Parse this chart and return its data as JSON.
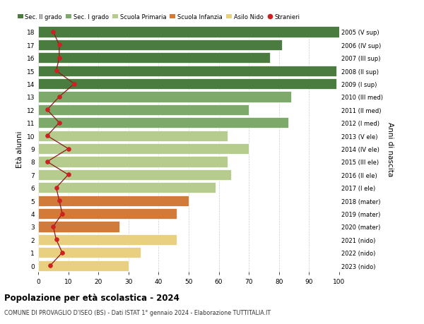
{
  "ages": [
    18,
    17,
    16,
    15,
    14,
    13,
    12,
    11,
    10,
    9,
    8,
    7,
    6,
    5,
    4,
    3,
    2,
    1,
    0
  ],
  "anni_nascita": [
    "2005 (V sup)",
    "2006 (IV sup)",
    "2007 (III sup)",
    "2008 (II sup)",
    "2009 (I sup)",
    "2010 (III med)",
    "2011 (II med)",
    "2012 (I med)",
    "2013 (V ele)",
    "2014 (IV ele)",
    "2015 (III ele)",
    "2016 (II ele)",
    "2017 (I ele)",
    "2018 (mater)",
    "2019 (mater)",
    "2020 (mater)",
    "2021 (nido)",
    "2022 (nido)",
    "2023 (nido)"
  ],
  "bar_values": [
    100,
    81,
    77,
    99,
    99,
    84,
    70,
    83,
    63,
    70,
    63,
    64,
    59,
    50,
    46,
    27,
    46,
    34,
    30
  ],
  "bar_colors": [
    "#4a7c3f",
    "#4a7c3f",
    "#4a7c3f",
    "#4a7c3f",
    "#4a7c3f",
    "#7daa6b",
    "#7daa6b",
    "#7daa6b",
    "#b5cc8e",
    "#b5cc8e",
    "#b5cc8e",
    "#b5cc8e",
    "#b5cc8e",
    "#d17a3a",
    "#d17a3a",
    "#d17a3a",
    "#e8d080",
    "#e8d080",
    "#e8d080"
  ],
  "stranieri": [
    5,
    7,
    7,
    6,
    12,
    7,
    3,
    7,
    3,
    10,
    3,
    10,
    6,
    7,
    8,
    5,
    6,
    8,
    4
  ],
  "legend_labels": [
    "Sec. II grado",
    "Sec. I grado",
    "Scuola Primaria",
    "Scuola Infanzia",
    "Asilo Nido",
    "Stranieri"
  ],
  "legend_colors": [
    "#4a7c3f",
    "#7daa6b",
    "#b5cc8e",
    "#d17a3a",
    "#e8d080",
    "#cc2222"
  ],
  "ylabel": "Età alunni",
  "ylabel2": "Anni di nascita",
  "title": "Popolazione per età scolastica - 2024",
  "subtitle": "COMUNE DI PROVAGLIO D'ISEO (BS) - Dati ISTAT 1° gennaio 2024 - Elaborazione TUTTITALIA.IT",
  "xlim": [
    0,
    100
  ],
  "background_color": "#ffffff",
  "grid_color": "#cccccc",
  "stranieri_line_color": "#8b1a1a",
  "stranieri_dot_color": "#cc2222"
}
